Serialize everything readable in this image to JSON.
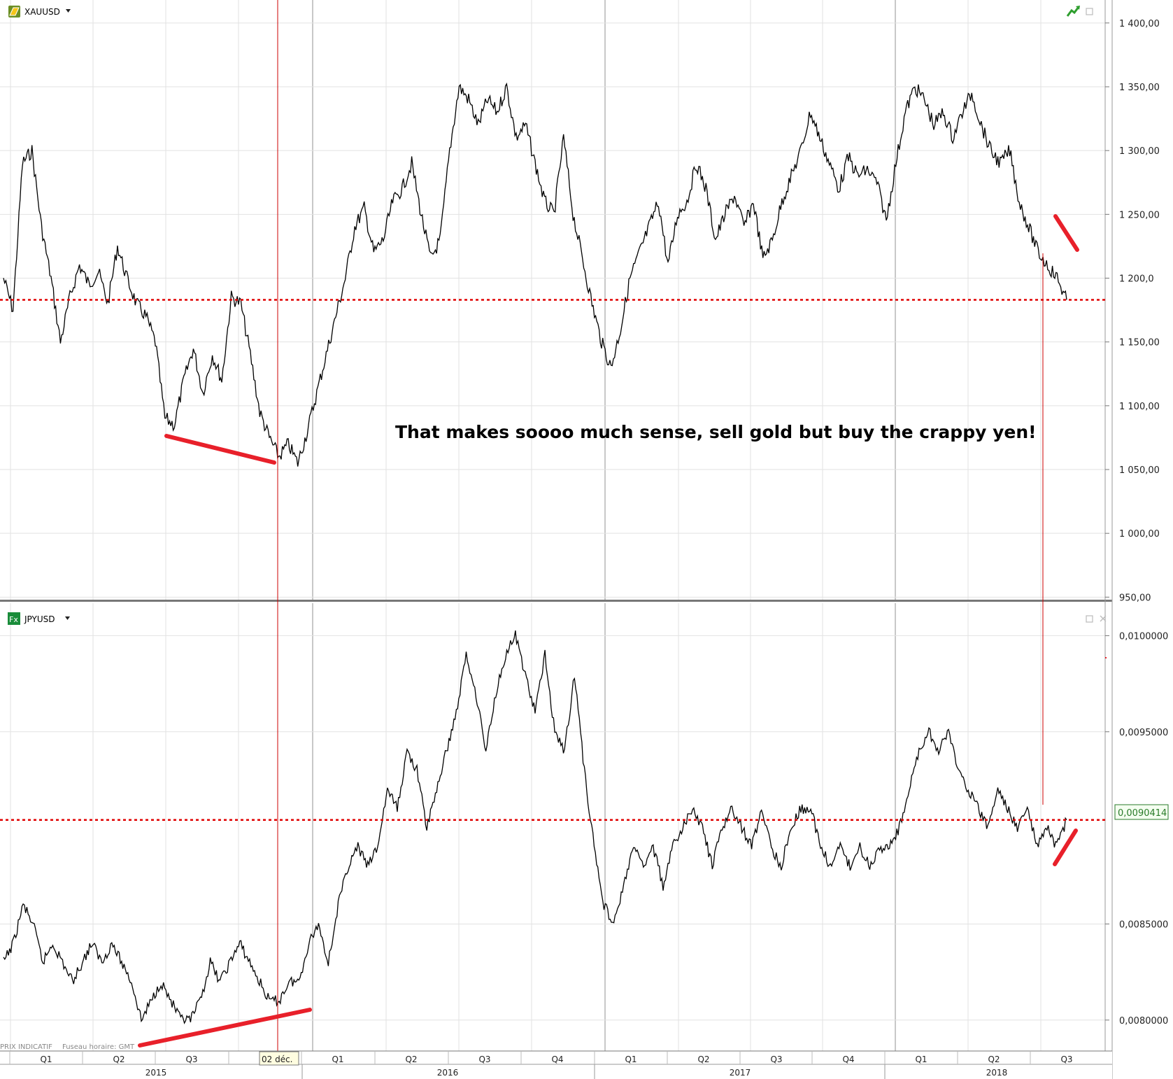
{
  "chart_data": [
    {
      "type": "line",
      "panel": "top",
      "title": "XAUUSD",
      "y_tick_labels": [
        "950,00",
        "1 000,00",
        "1 050,00",
        "1 100,00",
        "1 150,00",
        "1 200,0",
        "1 250,00",
        "1 300,00",
        "1 350,00",
        "1 400,00"
      ],
      "y_ticks": [
        950,
        1000,
        1050,
        1100,
        1150,
        1200,
        1250,
        1300,
        1350,
        1400
      ],
      "ylim": [
        948,
        1418
      ],
      "reference_line": 1183,
      "series": [
        {
          "values": [
            1200,
            1175,
            1290,
            1300,
            1240,
            1200,
            1150,
            1185,
            1210,
            1195,
            1205,
            1180,
            1225,
            1200,
            1180,
            1170,
            1150,
            1090,
            1085,
            1120,
            1145,
            1110,
            1140,
            1120,
            1185,
            1180,
            1140,
            1095,
            1075,
            1060,
            1070,
            1055,
            1080,
            1110,
            1140,
            1170,
            1200,
            1240,
            1255,
            1220,
            1230,
            1260,
            1270,
            1290,
            1250,
            1215,
            1230,
            1300,
            1350,
            1340,
            1320,
            1340,
            1330,
            1350,
            1310,
            1320,
            1290,
            1260,
            1250,
            1310,
            1250,
            1215,
            1180,
            1150,
            1130,
            1160,
            1200,
            1220,
            1240,
            1260,
            1210,
            1250,
            1260,
            1290,
            1270,
            1230,
            1250,
            1265,
            1240,
            1260,
            1215,
            1230,
            1260,
            1280,
            1300,
            1330,
            1310,
            1290,
            1270,
            1295,
            1280,
            1285,
            1275,
            1245,
            1290,
            1330,
            1350,
            1340,
            1320,
            1330,
            1310,
            1330,
            1345,
            1320,
            1300,
            1290,
            1300,
            1260,
            1240,
            1220,
            1210,
            1200,
            1183
          ]
        }
      ],
      "annotations": [
        "That makes soooo much sense, sell gold but buy the crappy yen!"
      ]
    },
    {
      "type": "line",
      "panel": "bottom",
      "title": "JPYUSD",
      "y_tick_labels": [
        "0,0080000",
        "0,0085000",
        "0,0095000",
        "0,0100000"
      ],
      "y_ticks": [
        0.008,
        0.0085,
        0.0095,
        0.01
      ],
      "ylim": [
        0.007839,
        0.010169
      ],
      "reference_line": 0.0090414,
      "last_value_label": "0,0090414",
      "series": [
        {
          "values": [
            0.0083,
            0.0084,
            0.0086,
            0.0085,
            0.0083,
            0.0084,
            0.0083,
            0.0082,
            0.0083,
            0.0084,
            0.0083,
            0.0084,
            0.0083,
            0.0082,
            0.008,
            0.0081,
            0.0082,
            0.0081,
            0.008,
            0.008,
            0.0081,
            0.0083,
            0.0082,
            0.0083,
            0.0084,
            0.0083,
            0.0082,
            0.0081,
            0.0081,
            0.0082,
            0.0082,
            0.0084,
            0.0085,
            0.0083,
            0.0086,
            0.0088,
            0.0089,
            0.0088,
            0.0089,
            0.0092,
            0.0091,
            0.0094,
            0.0093,
            0.009,
            0.0092,
            0.0094,
            0.0096,
            0.0099,
            0.0097,
            0.0094,
            0.0097,
            0.0099,
            0.01,
            0.0098,
            0.0096,
            0.0099,
            0.0095,
            0.0094,
            0.0098,
            0.0093,
            0.0089,
            0.0086,
            0.0085,
            0.0087,
            0.0089,
            0.0088,
            0.0089,
            0.0087,
            0.0089,
            0.009,
            0.0091,
            0.009,
            0.0088,
            0.009,
            0.0091,
            0.009,
            0.0089,
            0.0091,
            0.0089,
            0.0088,
            0.009,
            0.0091,
            0.0091,
            0.0089,
            0.0088,
            0.0089,
            0.0088,
            0.0089,
            0.0088,
            0.0089,
            0.0089,
            0.009,
            0.0092,
            0.0094,
            0.0095,
            0.0094,
            0.0095,
            0.0093,
            0.0092,
            0.0091,
            0.009,
            0.0092,
            0.0091,
            0.009,
            0.0091,
            0.0089,
            0.009,
            0.0089,
            0.0090414
          ]
        }
      ]
    }
  ],
  "x_axis": {
    "quarter_labels": [
      "Q1",
      "Q2",
      "Q3",
      "Q4",
      "Q1",
      "Q2",
      "Q3",
      "Q4",
      "Q1",
      "Q2",
      "Q3",
      "Q4",
      "Q1",
      "Q2",
      "Q3"
    ],
    "year_labels": [
      "2015",
      "2016",
      "2017",
      "2018"
    ],
    "cursor_label": "02 déc."
  },
  "footer": {
    "price_note": "PRIX INDICATIF",
    "timezone": "Fuseau horaire: GMT"
  },
  "icons": {
    "top_panel": "gold-bar-icon",
    "bottom_panel": "fx-icon",
    "trend": "trend-up-icon",
    "maximize": "maximize-icon",
    "close": "close-icon"
  },
  "colors": {
    "price_line": "#000000",
    "reference_line": "#e00000",
    "trend_marks": "#e8202a",
    "cursor_line": "#cc0000",
    "last_value_label": "#2a7a2a"
  }
}
